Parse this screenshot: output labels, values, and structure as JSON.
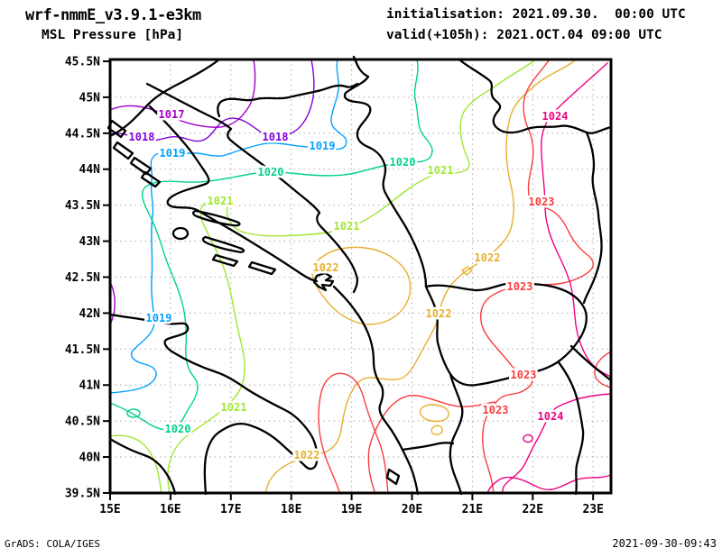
{
  "header": {
    "model": "wrf-nmmE_v3.9.1-e3km",
    "field": "MSL Pressure [hPa]",
    "init_label": "initialisation: 2021.09.30.  00:00 UTC",
    "valid_label": "valid(+105h): 2021.OCT.04 09:00 UTC"
  },
  "footer": {
    "credit": "GrADS: COLA/IGES",
    "timestamp": "2021-09-30-09:43"
  },
  "map": {
    "grid_color": "#b2b2b2",
    "coast_color": "#000000",
    "lat_ticks": [
      "45.5N",
      "45N",
      "44.5N",
      "44N",
      "43.5N",
      "43N",
      "42.5N",
      "42N",
      "41.5N",
      "41N",
      "40.5N",
      "40N",
      "39.5N"
    ],
    "lon_ticks": [
      "15E",
      "16E",
      "17E",
      "18E",
      "19E",
      "20E",
      "21E",
      "22E",
      "23E"
    ]
  },
  "chart_data": {
    "type": "contour",
    "title": "MSL Pressure [hPa]",
    "x_tick_labels": [
      "15E",
      "16E",
      "17E",
      "18E",
      "19E",
      "20E",
      "21E",
      "22E",
      "23E"
    ],
    "y_tick_labels": [
      "39.5N",
      "40N",
      "40.5N",
      "41N",
      "41.5N",
      "42N",
      "42.5N",
      "43N",
      "43.5N",
      "44N",
      "44.5N",
      "45N",
      "45.5N"
    ],
    "x_range_deg_east": [
      15,
      23.3
    ],
    "y_range_deg_north": [
      39.5,
      45.5
    ],
    "contour_interval_hpa": 1,
    "levels_hpa": [
      1017,
      1018,
      1019,
      1020,
      1021,
      1022,
      1023,
      1024
    ],
    "grid": "dashed",
    "orientation": "pressure increases from northwest (1017 hPa) to southeast/east (1024 hPa)"
  },
  "contours": [
    {
      "level": "1017",
      "color": "#A000C8",
      "labels": [
        [
          190,
          127
        ]
      ]
    },
    {
      "level": "1018",
      "color": "#8200DC",
      "labels": [
        [
          157,
          152
        ],
        [
          305,
          152
        ]
      ]
    },
    {
      "level": "1019",
      "color": "#00A0FF",
      "labels": [
        [
          191,
          170
        ],
        [
          357,
          162
        ],
        [
          176,
          353
        ]
      ]
    },
    {
      "level": "1020",
      "color": "#00D28C",
      "labels": [
        [
          300,
          191
        ],
        [
          446,
          180
        ],
        [
          197,
          476
        ]
      ]
    },
    {
      "level": "1021",
      "color": "#A0E632",
      "labels": [
        [
          488,
          189
        ],
        [
          384,
          251
        ],
        [
          244,
          223
        ],
        [
          259,
          452
        ]
      ]
    },
    {
      "level": "1022",
      "color": "#E6AF2D",
      "labels": [
        [
          540,
          286
        ],
        [
          486,
          348
        ],
        [
          361,
          297
        ],
        [
          340,
          505
        ]
      ]
    },
    {
      "level": "1023",
      "color": "#FA3C3C",
      "labels": [
        [
          600,
          224
        ],
        [
          576,
          318
        ],
        [
          580,
          416
        ],
        [
          549,
          455
        ]
      ]
    },
    {
      "level": "1024",
      "color": "#F00082",
      "labels": [
        [
          615,
          129
        ],
        [
          610,
          462
        ]
      ]
    }
  ]
}
